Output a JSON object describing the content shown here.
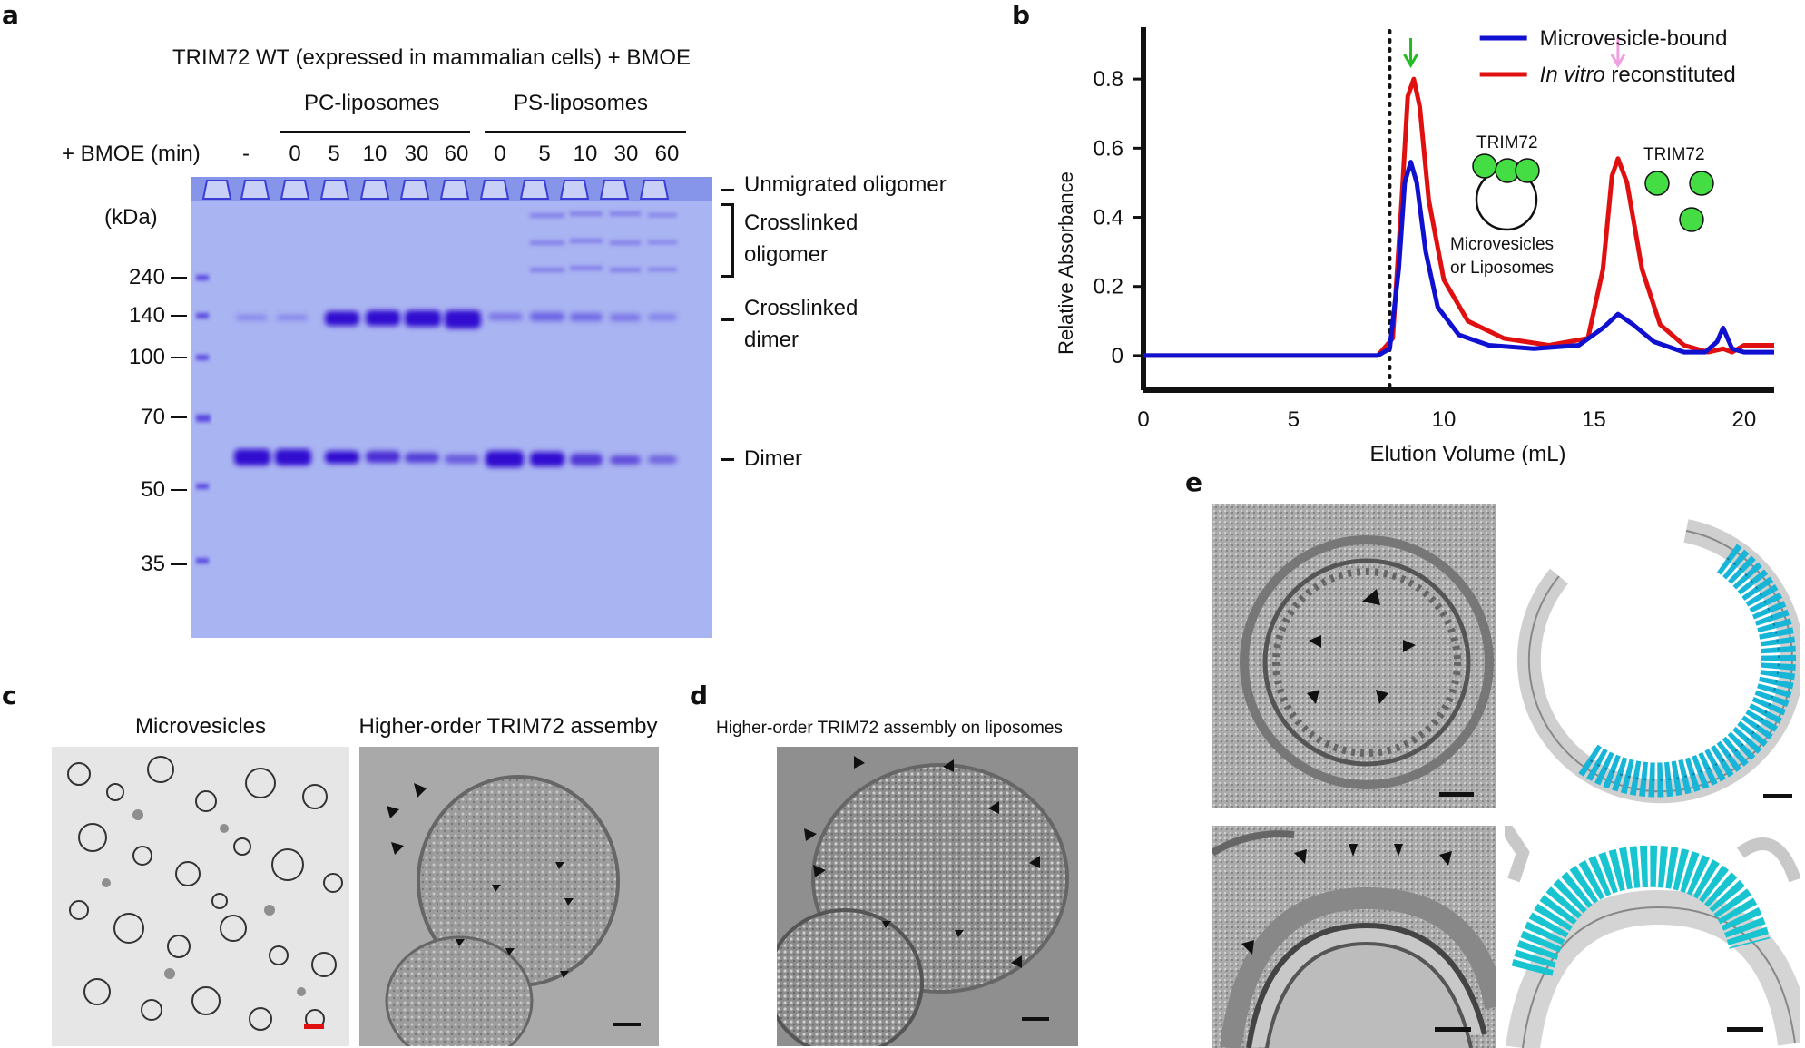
{
  "panels": {
    "a": {
      "label": "a",
      "title": "TRIM72 WT (expressed in mammalian cells) + BMOE",
      "group_pc": "PC-liposomes",
      "group_ps": "PS-liposomes",
      "row_label": "+ BMOE (min)",
      "lanes": [
        "-",
        "0",
        "5",
        "10",
        "30",
        "60",
        "0",
        "5",
        "10",
        "30",
        "60"
      ],
      "kda_label": "(kDa)",
      "markers": [
        "240",
        "140",
        "100",
        "70",
        "50",
        "35"
      ],
      "band_labels": {
        "unmigrated": "Unmigrated oligomer",
        "crosslinked_oligomer_1": "Crosslinked",
        "crosslinked_oligomer_2": "oligomer",
        "crosslinked_dimer_1": "Crosslinked",
        "crosslinked_dimer_2": "dimer",
        "dimer": "Dimer"
      }
    },
    "b": {
      "label": "b",
      "trim_label_1": "TRIM72",
      "trim_label_2": "TRIM72",
      "vesicle_label_1": "Microvesicles",
      "vesicle_label_2": "or Liposomes"
    },
    "c": {
      "label": "c",
      "left_title": "Microvesicles",
      "right_title": "Higher-order TRIM72 assemby"
    },
    "d": {
      "label": "d",
      "title": "Higher-order TRIM72 assembly on liposomes"
    },
    "e": {
      "label": "e"
    }
  },
  "chart_data": {
    "type": "line",
    "xlabel": "Elution Volume (mL)",
    "ylabel": "Relative Absorbance",
    "xlim": [
      0,
      21
    ],
    "ylim": [
      -0.1,
      0.95
    ],
    "xticks": [
      "0",
      "5",
      "10",
      "15",
      "20"
    ],
    "yticks": [
      "0",
      "0.2",
      "0.4",
      "0.6",
      "0.8"
    ],
    "void_line_x": 8.2,
    "legend_placement": "top-right",
    "legend": [
      "Microvesicle-bound",
      "In vitro reconstituted"
    ],
    "legend_italic": "In vitro",
    "legend_rest": " reconstituted",
    "series": [
      {
        "name": "Microvesicle-bound",
        "color": "#1010d0",
        "x": [
          0,
          7.8,
          8.2,
          8.5,
          8.7,
          8.9,
          9.1,
          9.4,
          9.8,
          10.5,
          11.5,
          13,
          14.5,
          15.3,
          15.8,
          16.3,
          17,
          18,
          18.7,
          19.1,
          19.3,
          19.6,
          20,
          21
        ],
        "y": [
          0.0,
          0.0,
          0.02,
          0.25,
          0.5,
          0.56,
          0.5,
          0.3,
          0.14,
          0.06,
          0.03,
          0.02,
          0.03,
          0.08,
          0.12,
          0.09,
          0.04,
          0.01,
          0.01,
          0.04,
          0.08,
          0.02,
          0.01,
          0.01
        ]
      },
      {
        "name": "In vitro reconstituted",
        "color": "#e01010",
        "x": [
          0,
          7.8,
          8.3,
          8.6,
          8.8,
          9.0,
          9.2,
          9.5,
          10.0,
          10.8,
          12,
          13.5,
          14.8,
          15.3,
          15.6,
          15.8,
          16.1,
          16.6,
          17.2,
          18.0,
          18.8,
          19.3,
          19.6,
          20,
          21
        ],
        "y": [
          0.0,
          0.0,
          0.05,
          0.45,
          0.75,
          0.8,
          0.72,
          0.45,
          0.22,
          0.1,
          0.05,
          0.03,
          0.05,
          0.25,
          0.52,
          0.57,
          0.5,
          0.25,
          0.09,
          0.03,
          0.01,
          0.02,
          0.01,
          0.03,
          0.03
        ]
      }
    ],
    "arrows": [
      {
        "x": 8.9,
        "color": "#22bb22"
      },
      {
        "x": 15.8,
        "color": "#f0a0e0"
      }
    ]
  },
  "colors": {
    "gel_bg": "#a9b4f2",
    "gel_band": "#3a1ad0",
    "trim_green": "#44dd44",
    "em_cyan": "#17b6d8"
  }
}
